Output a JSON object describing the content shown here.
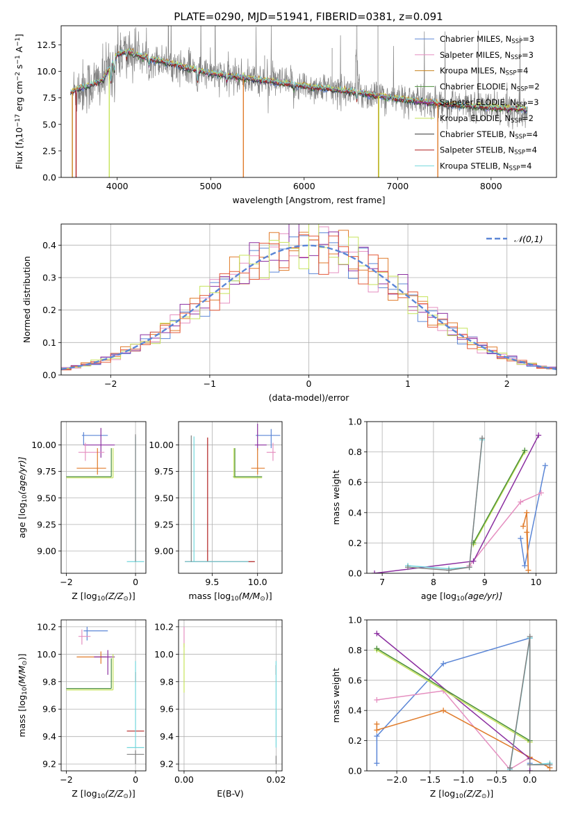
{
  "figure": {
    "title": "PLATE=0290, MJD=51941, FIBERID=0381, z=0.091"
  },
  "chart_data": [
    {
      "id": "spectrum",
      "type": "line",
      "xlabel": "wavelength [Angstrom, rest frame]",
      "ylabel": "Flux [f",
      "ylabel_sub": "λ",
      "ylabel_mid": "10",
      "ylabel_sup1": "−17",
      "ylabel_rest": " erg cm",
      "ylabel_sup2": "−2",
      "ylabel_rest2": " s",
      "ylabel_sup3": "−1",
      "ylabel_rest3": " A",
      "ylabel_sup4": "−1",
      "ylabel_end": "]",
      "xlim": [
        3400,
        8700
      ],
      "ylim": [
        0,
        14.3
      ],
      "xticks": [
        4000,
        5000,
        6000,
        7000,
        8000
      ],
      "yticks": [
        0.0,
        2.5,
        5.0,
        7.5,
        10.0,
        12.5
      ],
      "legend_position": "top-right",
      "legend": [
        {
          "label": "Chabrier MILES, N",
          "sub": "SSP",
          "suffix": "=3",
          "color": "#5b86d6"
        },
        {
          "label": "Salpeter MILES, N",
          "sub": "SSP",
          "suffix": "=3",
          "color": "#e58fc0"
        },
        {
          "label": "Kroupa MILES, N",
          "sub": "SSP",
          "suffix": "=4",
          "color": "#c7821d"
        },
        {
          "label": "Chabrier ELODIE, N",
          "sub": "SSP",
          "suffix": "=2",
          "color": "#4c8f3a"
        },
        {
          "label": "Salpeter ELODIE, N",
          "sub": "SSP",
          "suffix": "=3",
          "color": "#8b2fa0"
        },
        {
          "label": "Kroupa ELODIE, N",
          "sub": "SSP",
          "suffix": "=2",
          "color": "#c6e35a"
        },
        {
          "label": "Chabrier STELIB, N",
          "sub": "SSP",
          "suffix": "=4",
          "color": "#333333"
        },
        {
          "label": "Salpeter STELIB, N",
          "sub": "SSP",
          "suffix": "=4",
          "color": "#b02020"
        },
        {
          "label": "Kroupa STELIB, N",
          "sub": "SSP",
          "suffix": "=4",
          "color": "#72d6dc"
        }
      ],
      "data_color": "#808080",
      "data_wavelength_range": [
        3530,
        8390
      ],
      "model_anchor_points": [
        [
          3500,
          8.0
        ],
        [
          3600,
          8.4
        ],
        [
          3700,
          8.7
        ],
        [
          3850,
          9.2
        ],
        [
          4000,
          11.6
        ],
        [
          4100,
          11.9
        ],
        [
          4300,
          11.3
        ],
        [
          4500,
          10.9
        ],
        [
          4700,
          10.4
        ],
        [
          5000,
          9.8
        ],
        [
          5500,
          9.2
        ],
        [
          6000,
          8.6
        ],
        [
          6500,
          8.1
        ],
        [
          7000,
          7.4
        ],
        [
          7500,
          6.9
        ],
        [
          8000,
          6.6
        ],
        [
          8390,
          6.4
        ]
      ]
    },
    {
      "id": "residual-histogram",
      "type": "step",
      "xlabel": "(data-model)/error",
      "ylabel": "Normed distribution",
      "xlim": [
        -2.5,
        2.5
      ],
      "ylim": [
        0,
        0.465
      ],
      "xticks": [
        -2,
        -1,
        0,
        1,
        2
      ],
      "yticks": [
        0.0,
        0.1,
        0.2,
        0.3,
        0.4
      ],
      "legend_position": "top-right",
      "gaussian_label": "𝒩(0,1)",
      "gaussian_color": "#5b86d6",
      "bin_range": [
        -2.5,
        2.5
      ],
      "bin_count": 50,
      "series": [
        {
          "color": "#5b86d6",
          "offset": 0.0
        },
        {
          "color": "#e58fc0",
          "offset": 0.7
        },
        {
          "color": "#e07b2a",
          "offset": 1.4
        },
        {
          "color": "#8b2fa0",
          "offset": 2.1
        },
        {
          "color": "#c6e35a",
          "offset": 2.8
        },
        {
          "color": "#e45a3a",
          "offset": 3.5
        }
      ]
    },
    {
      "id": "age-vs-Z",
      "type": "scatter",
      "xlabel": "Z [log",
      "xlabel_sub": "10",
      "xlabel_end": "(Z/Z",
      "xlabel_sub2": "⊙",
      "xlabel_close": ")]",
      "ylabel": "age  [log",
      "ylabel_sub": "10",
      "ylabel_end": "(age/yr)]",
      "xlim": [
        -2.15,
        0.3
      ],
      "ylim": [
        8.79,
        10.22
      ],
      "xticks": [
        -2,
        0
      ],
      "yticks": [
        9.0,
        9.25,
        9.5,
        9.75,
        10.0
      ]
    },
    {
      "id": "age-vs-mass",
      "type": "scatter",
      "xlabel": "mass [log",
      "xlabel_sub": "10",
      "xlabel_end": "(M/M",
      "xlabel_sub2": "⊙",
      "xlabel_close": ")]",
      "ylabel": "",
      "xlim": [
        9.13,
        10.27
      ],
      "ylim": [
        8.79,
        10.22
      ],
      "xticks": [
        9.5,
        10.0
      ],
      "yticks": [
        9.0,
        9.25,
        9.5,
        9.75,
        10.0
      ]
    },
    {
      "id": "weight-vs-age",
      "type": "line",
      "xlabel": "age  [log",
      "xlabel_sub": "10",
      "xlabel_end": "(age/yr)]",
      "ylabel": "mass weight",
      "xlim": [
        6.7,
        10.4
      ],
      "ylim": [
        0,
        1.0
      ],
      "xticks": [
        7,
        8,
        9,
        10
      ],
      "yticks": [
        0.0,
        0.2,
        0.4,
        0.6,
        0.8,
        1.0
      ],
      "series": [
        {
          "color": "#5b86d6",
          "x": [
            9.7,
            9.78,
            10.18
          ],
          "y": [
            0.23,
            0.05,
            0.71
          ]
        },
        {
          "color": "#e58fc0",
          "x": [
            8.7,
            9.7,
            10.1
          ],
          "y": [
            0.05,
            0.47,
            0.53
          ]
        },
        {
          "color": "#e07b2a",
          "x": [
            9.75,
            9.82,
            9.85,
            9.82
          ],
          "y": [
            0.31,
            0.4,
            0.02,
            0.27
          ]
        },
        {
          "color": "#8b2fa0",
          "x": [
            6.85,
            8.78,
            10.05
          ],
          "y": [
            0.0,
            0.08,
            0.91
          ]
        },
        {
          "color": "#c6e35a",
          "x": [
            8.78,
            9.78
          ],
          "y": [
            0.19,
            0.8
          ]
        },
        {
          "color": "#4c8f3a",
          "x": [
            8.78,
            9.78
          ],
          "y": [
            0.2,
            0.81
          ]
        },
        {
          "color": "#72d6dc",
          "x": [
            7.5,
            8.3,
            8.7,
            8.95
          ],
          "y": [
            0.05,
            0.03,
            0.04,
            0.88
          ]
        },
        {
          "color": "#808080",
          "x": [
            7.5,
            8.3,
            8.7,
            8.95
          ],
          "y": [
            0.04,
            0.02,
            0.04,
            0.89
          ]
        }
      ]
    },
    {
      "id": "mass-vs-Z",
      "type": "scatter",
      "xlabel": "Z [log",
      "xlabel_sub": "10",
      "xlabel_end": "(Z/Z",
      "xlabel_sub2": "⊙",
      "xlabel_close": ")]",
      "ylabel": "mass [log",
      "ylabel_sub": "10",
      "ylabel_end": "(M/M",
      "ylabel_sub2": "⊙",
      "ylabel_close": ")]",
      "xlim": [
        -2.15,
        0.3
      ],
      "ylim": [
        9.15,
        10.25
      ],
      "xticks": [
        -2,
        0
      ],
      "yticks": [
        9.2,
        9.4,
        9.6,
        9.8,
        10.0,
        10.2
      ]
    },
    {
      "id": "mass-vs-ebv",
      "type": "scatter",
      "xlabel": "E(B-V)",
      "ylabel": "",
      "xlim": [
        -0.0012,
        0.0213
      ],
      "ylim": [
        9.15,
        10.25
      ],
      "xticks": [
        0.0,
        0.02
      ],
      "yticks": [
        9.2,
        9.4,
        9.6,
        9.8,
        10.0,
        10.2
      ]
    },
    {
      "id": "weight-vs-Z",
      "type": "line",
      "xlabel": "Z [log",
      "xlabel_sub": "10",
      "xlabel_end": "(Z/Z",
      "xlabel_sub2": "⊙",
      "xlabel_close": ")]",
      "ylabel": "mass weight",
      "xlim": [
        -2.45,
        0.4
      ],
      "ylim": [
        0,
        1.0
      ],
      "xticks": [
        -2.0,
        -1.5,
        -1.0,
        -0.5,
        0.0
      ],
      "yticks": [
        0.0,
        0.2,
        0.4,
        0.6,
        0.8,
        1.0
      ],
      "series": [
        {
          "color": "#5b86d6",
          "x": [
            -2.3,
            -2.3,
            -1.3,
            0.0,
            0.0
          ],
          "y": [
            0.05,
            0.23,
            0.71,
            0.88,
            0.05
          ]
        },
        {
          "color": "#e58fc0",
          "x": [
            -2.3,
            -1.3,
            -0.3,
            0.0
          ],
          "y": [
            0.47,
            0.53,
            0.01,
            0.09
          ]
        },
        {
          "color": "#e07b2a",
          "x": [
            -2.3,
            -2.3,
            -1.3,
            0.0,
            0.3
          ],
          "y": [
            0.31,
            0.27,
            0.4,
            0.09,
            0.02
          ]
        },
        {
          "color": "#8b2fa0",
          "x": [
            -2.3,
            0.0,
            0.0
          ],
          "y": [
            0.91,
            0.08,
            0.0
          ]
        },
        {
          "color": "#c6e35a",
          "x": [
            -2.3,
            0.0
          ],
          "y": [
            0.8,
            0.19
          ]
        },
        {
          "color": "#4c8f3a",
          "x": [
            -2.3,
            0.0
          ],
          "y": [
            0.81,
            0.2
          ]
        },
        {
          "color": "#72d6dc",
          "x": [
            -0.3,
            0.0,
            0.0,
            0.3
          ],
          "y": [
            0.01,
            0.88,
            0.04,
            0.05
          ]
        },
        {
          "color": "#808080",
          "x": [
            -0.3,
            0.0,
            0.0,
            0.3
          ],
          "y": [
            0.02,
            0.89,
            0.04,
            0.04
          ]
        }
      ]
    }
  ]
}
